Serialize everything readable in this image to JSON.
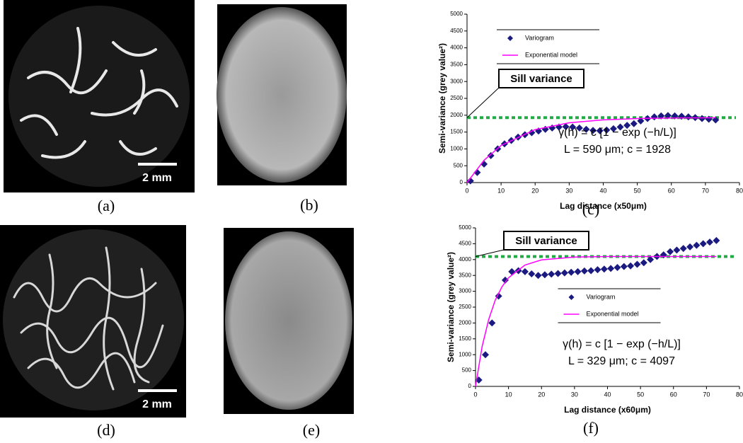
{
  "panels": [
    {
      "label": "(a)",
      "scale_bar": "2 mm"
    },
    {
      "label": "(b)"
    },
    {
      "label": "(d)",
      "scale_bar": "2 mm"
    },
    {
      "label": "(e)"
    }
  ],
  "chart_data": [
    {
      "type": "scatter",
      "panel_label": "(c)",
      "x_label": "Lag distance (x50μm)",
      "y_label": "Semi-variance (grey value²)",
      "xlim": [
        0,
        80
      ],
      "xticks": [
        0,
        10,
        20,
        30,
        40,
        50,
        60,
        70,
        80
      ],
      "ylim": [
        0,
        5000
      ],
      "yticks": [
        0,
        500,
        1000,
        1500,
        2000,
        2500,
        3000,
        3500,
        4000,
        4500,
        5000
      ],
      "legend": "upper left",
      "series": [
        {
          "name": "Variogram",
          "color": "#1a1a80",
          "mode": "markers",
          "x": [
            1,
            3,
            5,
            7,
            9,
            11,
            13,
            15,
            17,
            19,
            21,
            23,
            25,
            27,
            29,
            31,
            33,
            35,
            37,
            39,
            41,
            43,
            45,
            47,
            49,
            51,
            53,
            55,
            57,
            59,
            61,
            63,
            65,
            67,
            69,
            71,
            73
          ],
          "values": [
            50,
            300,
            550,
            800,
            1000,
            1150,
            1250,
            1350,
            1420,
            1480,
            1530,
            1580,
            1620,
            1650,
            1660,
            1650,
            1620,
            1580,
            1550,
            1540,
            1560,
            1600,
            1650,
            1700,
            1750,
            1830,
            1900,
            1950,
            1980,
            1990,
            1980,
            1970,
            1950,
            1930,
            1900,
            1880,
            1860
          ]
        },
        {
          "name": "Exponential model",
          "color": "#ff00ff",
          "mode": "line",
          "x": [
            0,
            5,
            10,
            20,
            30,
            40,
            50,
            60,
            73
          ],
          "values": [
            0,
            663,
            1101,
            1573,
            1775,
            1863,
            1900,
            1916,
            1924
          ]
        }
      ],
      "sill": {
        "label": "Sill variance",
        "value": 1928,
        "color": "#22aa44"
      },
      "formula": [
        "γ(h) = c [1 − exp (−h/L)]",
        "L = 590 μm; c = 1928"
      ]
    },
    {
      "type": "scatter",
      "panel_label": "(f)",
      "x_label": "Lag distance (x60μm)",
      "y_label": "Semi-variance (grey value²)",
      "xlim": [
        0,
        80
      ],
      "xticks": [
        0,
        10,
        20,
        30,
        40,
        50,
        60,
        70,
        80
      ],
      "ylim": [
        0,
        5000
      ],
      "yticks": [
        0,
        500,
        1000,
        1500,
        2000,
        2500,
        3000,
        3500,
        4000,
        4500,
        5000
      ],
      "legend": "center",
      "series": [
        {
          "name": "Variogram",
          "color": "#1a1a80",
          "mode": "markers",
          "x": [
            1,
            3,
            5,
            7,
            9,
            11,
            13,
            15,
            17,
            19,
            21,
            23,
            25,
            27,
            29,
            31,
            33,
            35,
            37,
            39,
            41,
            43,
            45,
            47,
            49,
            51,
            53,
            55,
            57,
            59,
            61,
            63,
            65,
            67,
            69,
            71,
            73
          ],
          "values": [
            200,
            1000,
            2000,
            2850,
            3350,
            3620,
            3650,
            3620,
            3550,
            3500,
            3520,
            3540,
            3560,
            3580,
            3600,
            3620,
            3640,
            3650,
            3680,
            3700,
            3720,
            3750,
            3780,
            3800,
            3850,
            3900,
            4000,
            4100,
            4150,
            4250,
            4300,
            4350,
            4400,
            4450,
            4500,
            4550,
            4600
          ]
        },
        {
          "name": "Exponential model",
          "color": "#ff00ff",
          "mode": "line",
          "x": [
            0,
            2,
            4,
            6,
            8,
            10,
            15,
            20,
            30,
            40,
            50,
            73
          ],
          "values": [
            0,
            1260,
            2112,
            2729,
            3139,
            3427,
            3828,
            3990,
            4080,
            4095,
            4097,
            4097
          ]
        }
      ],
      "sill": {
        "label": "Sill variance",
        "value": 4097,
        "color": "#22aa44"
      },
      "formula": [
        "γ(h) = c [1 − exp (−h/L)]",
        "L = 329 μm; c = 4097"
      ]
    }
  ]
}
